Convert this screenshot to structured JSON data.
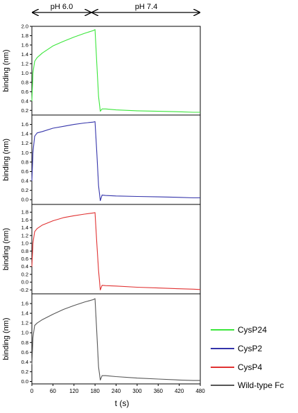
{
  "phase_labels": {
    "left": "pH 6.0",
    "right": "pH 7.4"
  },
  "xlabel": "t (s)",
  "legend": [
    {
      "label": "CysP24",
      "color": "#39e639"
    },
    {
      "label": "CysP2",
      "color": "#3333aa"
    },
    {
      "label": "CysP4",
      "color": "#e03030"
    },
    {
      "label": "Wild-type Fc",
      "color": "#555555"
    }
  ],
  "chart_data": [
    {
      "type": "line",
      "ylabel": "binding (nm)",
      "xlim": [
        0,
        480
      ],
      "ylim": [
        0.1,
        2.0
      ],
      "yticks": [
        0.2,
        0.4,
        0.6,
        0.8,
        1.0,
        1.2,
        1.4,
        1.6,
        1.8,
        2.0
      ],
      "xticks": [],
      "series": [
        {
          "name": "CysP24",
          "color": "#39e639",
          "x": [
            0,
            3,
            8,
            15,
            30,
            60,
            90,
            120,
            150,
            175,
            180,
            185,
            190,
            195,
            200,
            210,
            240,
            300,
            360,
            420,
            460,
            480
          ],
          "y": [
            0.4,
            1.0,
            1.25,
            1.33,
            1.43,
            1.58,
            1.68,
            1.77,
            1.85,
            1.91,
            1.93,
            1.2,
            0.5,
            0.18,
            0.23,
            0.23,
            0.21,
            0.19,
            0.18,
            0.17,
            0.16,
            0.16
          ]
        }
      ]
    },
    {
      "type": "line",
      "ylabel": "binding (nm)",
      "xlim": [
        0,
        480
      ],
      "ylim": [
        -0.1,
        1.8
      ],
      "yticks": [
        0.0,
        0.2,
        0.4,
        0.6,
        0.8,
        1.0,
        1.2,
        1.4,
        1.6
      ],
      "xticks": [],
      "series": [
        {
          "name": "CysP2",
          "color": "#3333aa",
          "x": [
            0,
            3,
            8,
            15,
            30,
            60,
            90,
            120,
            150,
            175,
            180,
            185,
            190,
            195,
            200,
            210,
            240,
            300,
            360,
            420,
            460,
            480
          ],
          "y": [
            0.4,
            1.0,
            1.35,
            1.42,
            1.45,
            1.52,
            1.56,
            1.6,
            1.63,
            1.65,
            1.66,
            1.0,
            0.3,
            -0.02,
            0.1,
            0.09,
            0.08,
            0.07,
            0.06,
            0.05,
            0.04,
            0.04
          ]
        }
      ]
    },
    {
      "type": "line",
      "ylabel": "binding (nm)",
      "xlim": [
        0,
        480
      ],
      "ylim": [
        -0.3,
        2.0
      ],
      "yticks": [
        -0.2,
        0.0,
        0.2,
        0.4,
        0.6,
        0.8,
        1.0,
        1.2,
        1.4,
        1.6,
        1.8
      ],
      "xticks": [],
      "series": [
        {
          "name": "CysP4",
          "color": "#e03030",
          "x": [
            0,
            3,
            8,
            15,
            30,
            60,
            90,
            120,
            150,
            175,
            180,
            185,
            190,
            195,
            200,
            210,
            240,
            300,
            360,
            420,
            460,
            480
          ],
          "y": [
            0.4,
            1.0,
            1.3,
            1.38,
            1.47,
            1.58,
            1.66,
            1.71,
            1.75,
            1.78,
            1.79,
            1.0,
            0.3,
            -0.2,
            -0.08,
            -0.09,
            -0.1,
            -0.13,
            -0.15,
            -0.17,
            -0.18,
            -0.19
          ]
        }
      ]
    },
    {
      "type": "line",
      "ylabel": "binding (nm)",
      "xlim": [
        0,
        480
      ],
      "ylim": [
        -0.05,
        1.8
      ],
      "yticks": [
        0.0,
        0.2,
        0.4,
        0.6,
        0.8,
        1.0,
        1.2,
        1.4,
        1.6
      ],
      "xticks": [
        0,
        60,
        120,
        180,
        240,
        300,
        360,
        420,
        480
      ],
      "series": [
        {
          "name": "Wild-type Fc",
          "color": "#555555",
          "x": [
            0,
            3,
            8,
            15,
            30,
            60,
            90,
            120,
            150,
            175,
            180,
            185,
            190,
            195,
            200,
            210,
            240,
            300,
            360,
            420,
            460,
            480
          ],
          "y": [
            0.35,
            0.9,
            1.15,
            1.2,
            1.27,
            1.38,
            1.48,
            1.56,
            1.63,
            1.68,
            1.7,
            1.0,
            0.3,
            0.03,
            0.12,
            0.12,
            0.1,
            0.07,
            0.05,
            0.03,
            0.02,
            0.02
          ]
        }
      ]
    }
  ]
}
